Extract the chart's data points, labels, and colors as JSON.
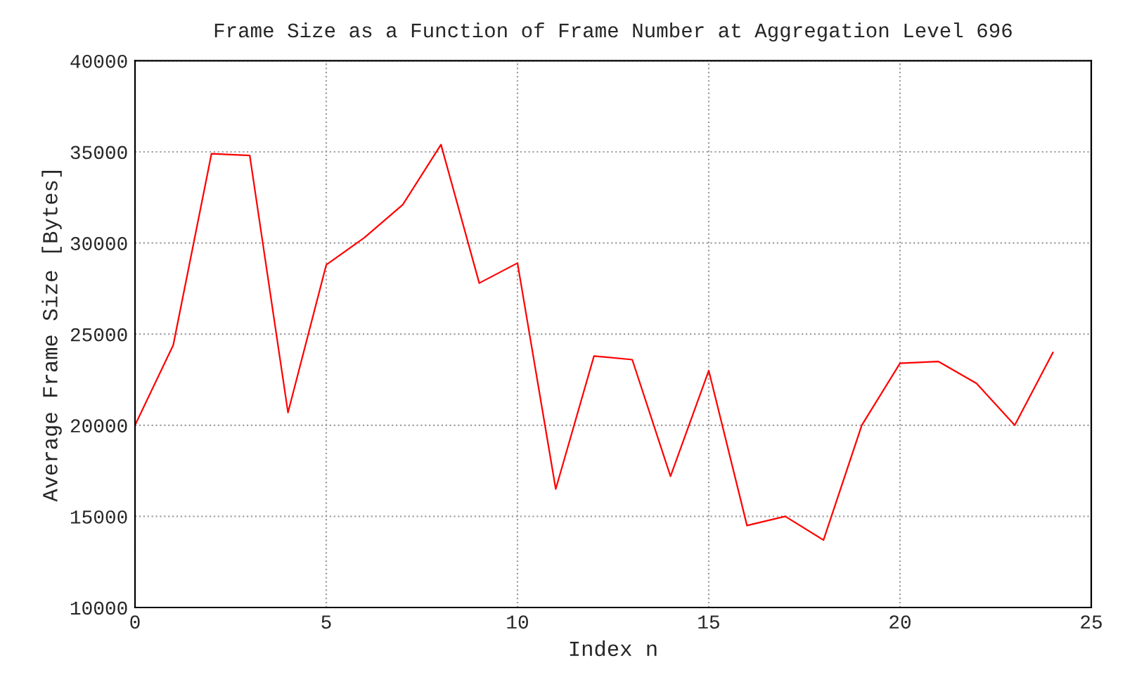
{
  "chart_data": {
    "type": "line",
    "title": "Frame Size as a Function of Frame Number at Aggregation Level 696",
    "xlabel": "Index n",
    "ylabel": "Average Frame Size [Bytes]",
    "x": [
      0,
      1,
      2,
      3,
      4,
      5,
      6,
      7,
      8,
      9,
      10,
      11,
      12,
      13,
      14,
      15,
      16,
      17,
      18,
      19,
      20,
      21,
      22,
      23,
      24
    ],
    "series": [
      {
        "color": "#ff0000",
        "values": [
          20000,
          24400,
          34900,
          34800,
          20700,
          28800,
          30300,
          32100,
          35400,
          27800,
          28900,
          16500,
          23800,
          23600,
          17200,
          23000,
          14500,
          15000,
          13700,
          20000,
          23400,
          23500,
          22300,
          20000,
          24000
        ]
      }
    ],
    "xlim": [
      0,
      25
    ],
    "xticks": [
      0,
      5,
      10,
      15,
      20,
      25
    ],
    "ylim": [
      10000,
      40000
    ],
    "yticks": [
      10000,
      15000,
      20000,
      25000,
      30000,
      35000,
      40000
    ],
    "grid": true,
    "marker": "none",
    "line_style": "solid"
  }
}
